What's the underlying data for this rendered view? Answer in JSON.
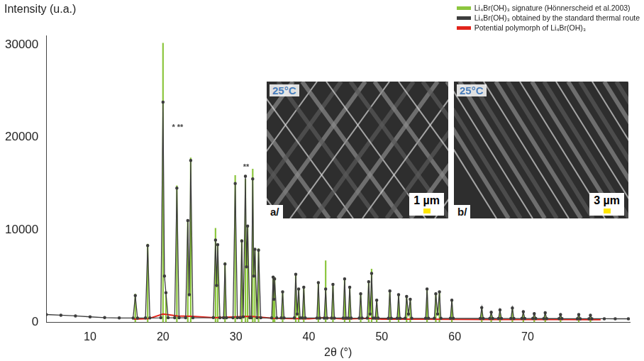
{
  "chart_data": {
    "type": "line",
    "y_label": "Intensity (u.a.)",
    "x_label": "2θ (°)",
    "xlim": [
      4,
      84
    ],
    "xticks": [
      10,
      20,
      30,
      40,
      50,
      60,
      70
    ],
    "ylim": [
      0,
      31000
    ],
    "yticks": [
      0,
      10000,
      20000,
      30000
    ],
    "grid": false,
    "legend": "upper right",
    "series": [
      {
        "name": "Li₄Br(OH)₃ signature (Hönnerscheid et al.2003)",
        "color": "#8cc63e",
        "type": "stem",
        "x": [
          16.2,
          17.9,
          20.0,
          20.4,
          21.9,
          23.4,
          23.8,
          27.2,
          27.5,
          28.5,
          29.9,
          30.8,
          31.3,
          31.6,
          32.3,
          32.6,
          33.1,
          35.1,
          35.3,
          36.4,
          38.2,
          38.6,
          39.3,
          41.3,
          42.3,
          43.3,
          44.9,
          45.6,
          47.1,
          48.2,
          48.6,
          49.3,
          51.1,
          52.3,
          53.4,
          53.9,
          56.2,
          57.4,
          57.9,
          59.6,
          63.7,
          65.0,
          66.2,
          67.9,
          69.4,
          70.9,
          72.4,
          74.5,
          77.0,
          78.6
        ],
        "values": [
          3100,
          8500,
          30200,
          3000,
          14800,
          11000,
          17800,
          10200,
          8500,
          6500,
          15900,
          9000,
          15500,
          10500,
          16600,
          8000,
          8000,
          5000,
          4900,
          3400,
          5300,
          3700,
          3900,
          4400,
          6700,
          4200,
          4800,
          3900,
          3200,
          4500,
          5800,
          2500,
          3500,
          3100,
          2900,
          2600,
          3700,
          3200,
          3400,
          2500,
          1700,
          1100,
          1400,
          1600,
          1200,
          1000,
          1100,
          900,
          900,
          800
        ]
      },
      {
        "name": "Li₄Br(OH)₃ obtained by the standard thermal route",
        "color": "#3d3d3d",
        "type": "line",
        "marker": "circle",
        "x": [
          4,
          6,
          8,
          10,
          12,
          14,
          15.9,
          16.2,
          16.5,
          17.6,
          17.9,
          18.2,
          19.7,
          20.0,
          20.2,
          20.4,
          20.7,
          21.6,
          21.9,
          22.2,
          23.1,
          23.4,
          23.6,
          23.8,
          24.1,
          26.9,
          27.2,
          27.35,
          27.5,
          27.8,
          28.3,
          28.5,
          28.7,
          29.6,
          29.9,
          30.2,
          30.6,
          30.8,
          31.0,
          31.3,
          31.45,
          31.6,
          31.9,
          32.1,
          32.3,
          32.45,
          32.6,
          32.9,
          33.1,
          33.4,
          34.9,
          35.1,
          35.2,
          35.3,
          35.6,
          36.2,
          36.4,
          36.6,
          38.0,
          38.2,
          38.4,
          38.6,
          38.8,
          39.1,
          39.3,
          39.5,
          41.1,
          41.3,
          41.5,
          42.1,
          42.3,
          42.5,
          43.1,
          43.3,
          43.5,
          44.7,
          44.9,
          45.1,
          45.4,
          45.6,
          45.8,
          46.9,
          47.1,
          47.3,
          48.0,
          48.2,
          48.4,
          48.6,
          48.8,
          49.1,
          49.3,
          49.5,
          50.9,
          51.1,
          51.3,
          52.1,
          52.3,
          52.5,
          53.2,
          53.4,
          53.65,
          53.9,
          54.1,
          56.0,
          56.2,
          56.4,
          57.2,
          57.4,
          57.65,
          57.9,
          58.1,
          59.4,
          59.6,
          59.8,
          63.5,
          63.7,
          63.9,
          64.8,
          65.0,
          65.2,
          66.0,
          66.2,
          66.4,
          67.7,
          67.9,
          68.1,
          69.2,
          69.4,
          69.6,
          70.7,
          70.9,
          71.1,
          72.2,
          72.4,
          72.6,
          74.3,
          74.5,
          74.7,
          76.8,
          77.0,
          77.2,
          78.4,
          78.6,
          78.8,
          80.5,
          82,
          83.8
        ],
        "values": [
          850,
          780,
          700,
          600,
          520,
          480,
          470,
          2900,
          470,
          480,
          8300,
          480,
          500,
          23800,
          5000,
          3200,
          500,
          500,
          14500,
          500,
          500,
          11000,
          3000,
          17500,
          500,
          520,
          8900,
          4000,
          8400,
          500,
          500,
          6300,
          500,
          500,
          15000,
          500,
          500,
          8800,
          600,
          15800,
          6000,
          10400,
          500,
          500,
          15500,
          5000,
          7900,
          500,
          7800,
          500,
          480,
          4900,
          2500,
          4700,
          480,
          480,
          3300,
          480,
          480,
          5200,
          900,
          3600,
          480,
          480,
          3800,
          480,
          470,
          4300,
          470,
          470,
          3600,
          470,
          470,
          4100,
          470,
          470,
          4700,
          470,
          470,
          3800,
          470,
          460,
          3100,
          460,
          460,
          4400,
          900,
          5300,
          460,
          460,
          2400,
          460,
          450,
          3400,
          450,
          450,
          3000,
          450,
          450,
          2800,
          900,
          2500,
          450,
          440,
          3600,
          440,
          440,
          3100,
          900,
          3300,
          440,
          440,
          2400,
          440,
          430,
          1600,
          430,
          430,
          1100,
          430,
          430,
          1350,
          430,
          420,
          1550,
          420,
          420,
          1150,
          420,
          420,
          950,
          420,
          410,
          1050,
          410,
          410,
          850,
          410,
          400,
          850,
          400,
          400,
          780,
          400,
          400,
          390,
          390
        ]
      },
      {
        "name": "Potential polymorph of Li₄Br(OH)₃",
        "color": "#e2231a",
        "type": "line",
        "x": [
          16,
          18,
          20,
          22,
          24,
          27,
          30,
          32,
          35,
          40,
          42,
          45,
          48,
          50,
          55,
          60,
          65,
          70,
          75,
          80
        ],
        "values": [
          350,
          400,
          900,
          700,
          650,
          500,
          600,
          650,
          450,
          400,
          500,
          380,
          450,
          350,
          350,
          330,
          320,
          320,
          310,
          300
        ]
      }
    ],
    "annotations": [
      {
        "text": "* **",
        "x": 22.0,
        "y": 20600
      },
      {
        "text": "**",
        "x": 31.4,
        "y": 16300
      }
    ],
    "insets": [
      {
        "panel": "a/",
        "temperature": "25°C",
        "scale_bar": "1 µm"
      },
      {
        "panel": "b/",
        "temperature": "25°C",
        "scale_bar": "3 µm"
      }
    ]
  }
}
